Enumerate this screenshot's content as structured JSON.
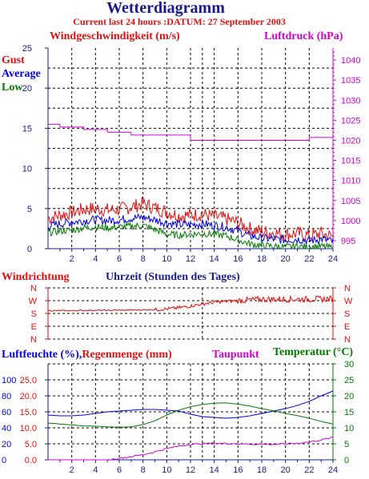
{
  "header": {
    "title": "Wetterdiagramm",
    "subtitle": "Current last 24 hours :DATUM: 27 September 2003"
  },
  "colors": {
    "navy": "#1a1a8c",
    "red": "#e01010",
    "magenta": "#d100d1",
    "green": "#007a00",
    "blue": "#0000e6",
    "grid": "#000000"
  },
  "chart_data": [
    {
      "type": "line",
      "panel": "wind",
      "ylabel": "Windgeschwindigkeit (m/s)",
      "y2label": "Luftdruck (hPa)",
      "ylim": [
        0,
        25
      ],
      "y2lim": [
        993,
        1043
      ],
      "y_ticks": [
        "0",
        "5",
        "10",
        "15",
        "20",
        "25"
      ],
      "y2_ticks": [
        "995",
        "1000",
        "1005",
        "1010",
        "1015",
        "1020",
        "1025",
        "1030",
        "1035",
        "1040"
      ],
      "x_ticks": [
        "2",
        "4",
        "6",
        "8",
        "10",
        "12",
        "14",
        "16",
        "18",
        "20",
        "22",
        "24"
      ],
      "xlim": [
        0,
        24
      ],
      "legend": [
        "Gust",
        "Average",
        "Low"
      ],
      "grid": true,
      "series": [
        {
          "name": "Gust",
          "color": "#e01010",
          "x": [
            0,
            1,
            2,
            3,
            4,
            5,
            6,
            7,
            8,
            9,
            10,
            11,
            12,
            13,
            14,
            15,
            16,
            17,
            18,
            19,
            20,
            21,
            22,
            23,
            24
          ],
          "values": [
            3.8,
            4.2,
            4.5,
            4.9,
            5.0,
            4.8,
            4.9,
            5.2,
            5.6,
            5.1,
            4.6,
            4.1,
            4.2,
            4.3,
            4.0,
            3.7,
            3.2,
            2.5,
            2.1,
            2.0,
            1.8,
            1.9,
            1.6,
            1.9,
            1.5
          ]
        },
        {
          "name": "Average",
          "color": "#0000e6",
          "x": [
            0,
            1,
            2,
            3,
            4,
            5,
            6,
            7,
            8,
            9,
            10,
            11,
            12,
            13,
            14,
            15,
            16,
            17,
            18,
            19,
            20,
            21,
            22,
            23,
            24
          ],
          "values": [
            2.8,
            3.1,
            3.3,
            3.5,
            3.6,
            3.5,
            3.6,
            3.8,
            3.9,
            3.6,
            3.2,
            3.0,
            3.0,
            3.1,
            2.9,
            2.7,
            2.2,
            1.6,
            1.3,
            1.2,
            1.1,
            1.2,
            1.0,
            1.2,
            0.9
          ]
        },
        {
          "name": "Low",
          "color": "#007a00",
          "x": [
            0,
            1,
            2,
            3,
            4,
            5,
            6,
            7,
            8,
            9,
            10,
            11,
            12,
            13,
            14,
            15,
            16,
            17,
            18,
            19,
            20,
            21,
            22,
            23,
            24
          ],
          "values": [
            2.0,
            2.2,
            2.3,
            2.6,
            2.7,
            2.6,
            2.7,
            2.8,
            2.9,
            2.4,
            1.8,
            1.7,
            1.8,
            1.9,
            1.8,
            1.6,
            1.1,
            0.6,
            0.4,
            0.3,
            0.2,
            0.3,
            0.2,
            0.3,
            0.1
          ]
        },
        {
          "name": "Luftdruck",
          "axis": "y2",
          "color": "#d100d1",
          "x": [
            0,
            1,
            2,
            3,
            4,
            5,
            6,
            7,
            8,
            9,
            10,
            11,
            12,
            13,
            14,
            15,
            16,
            17,
            18,
            19,
            20,
            21,
            22,
            23,
            24
          ],
          "values": [
            1024.0,
            1023.3,
            1023.3,
            1022.7,
            1022.7,
            1022.0,
            1022.0,
            1021.3,
            1021.3,
            1021.3,
            1021.3,
            1021.3,
            1020.0,
            1020.0,
            1020.0,
            1020.0,
            1020.0,
            1020.0,
            1020.0,
            1020.0,
            1020.0,
            1020.0,
            1020.7,
            1020.7,
            1020.7
          ]
        }
      ]
    },
    {
      "type": "line",
      "panel": "direction",
      "ylabel": "Windrichtung",
      "xlabel": "Uhrzeit (Stunden des Tages)",
      "y_ticks": [
        "N",
        "E",
        "S",
        "W",
        "N"
      ],
      "ylim": [
        0,
        360
      ],
      "xlim": [
        0,
        24
      ],
      "grid": true,
      "series": [
        {
          "name": "Windrichtung",
          "color": "#e01010",
          "x": [
            0,
            1,
            2,
            3,
            4,
            5,
            6,
            7,
            8,
            9,
            10,
            11,
            12,
            13,
            14,
            15,
            16,
            17,
            18,
            19,
            20,
            21,
            22,
            23,
            24
          ],
          "values": [
            200,
            200,
            200,
            202,
            202,
            202,
            203,
            204,
            205,
            207,
            212,
            220,
            232,
            247,
            258,
            265,
            270,
            275,
            280,
            280,
            280,
            280,
            280,
            282,
            283
          ]
        }
      ]
    },
    {
      "type": "line",
      "panel": "humidity",
      "ylabel": "Luftfeuchte (%),Regenmenge (mm)",
      "y2label": "Temperatur (°C)",
      "extra_label": "Taupunkt",
      "y_ticks_humidity": [
        "0",
        "20",
        "40",
        "60",
        "80",
        "100"
      ],
      "y_ticks_rain": [
        "0.0",
        "5.0",
        "10.0",
        "15.0",
        "20.0",
        "25.0"
      ],
      "y2_ticks": [
        "0",
        "5",
        "10",
        "15",
        "20",
        "25",
        "30"
      ],
      "ylim": [
        0,
        120
      ],
      "y2lim": [
        0,
        30
      ],
      "x_ticks": [
        "2",
        "4",
        "6",
        "8",
        "10",
        "12",
        "14",
        "16",
        "18",
        "20",
        "22",
        "24"
      ],
      "xlim": [
        0,
        24
      ],
      "grid": true,
      "series": [
        {
          "name": "Luftfeuchte",
          "color": "#0000e6",
          "axis": "y",
          "x": [
            0,
            1,
            2,
            3,
            4,
            5,
            6,
            7,
            8,
            9,
            10,
            11,
            12,
            13,
            14,
            15,
            16,
            17,
            18,
            19,
            20,
            21,
            22,
            23,
            24
          ],
          "values": [
            56,
            55,
            55,
            56,
            58,
            60,
            61,
            62,
            63,
            63,
            62,
            61,
            57,
            54,
            53,
            52,
            53,
            55,
            58,
            61,
            64,
            68,
            73,
            80,
            86
          ]
        },
        {
          "name": "Temperatur",
          "color": "#007a00",
          "axis": "y2",
          "x": [
            0,
            1,
            2,
            3,
            4,
            5,
            6,
            7,
            8,
            9,
            10,
            11,
            12,
            13,
            14,
            15,
            16,
            17,
            18,
            19,
            20,
            21,
            22,
            23,
            24
          ],
          "values": [
            11.5,
            11.2,
            10.9,
            10.6,
            10.5,
            10.3,
            10.2,
            10.3,
            11.0,
            12.2,
            14.0,
            15.5,
            16.6,
            17.3,
            17.7,
            17.8,
            17.4,
            16.8,
            16.0,
            15.3,
            14.5,
            13.8,
            13.0,
            12.0,
            11.2
          ]
        },
        {
          "name": "Taupunkt",
          "color": "#d100d1",
          "axis": "y2",
          "x": [
            0,
            1,
            2,
            3,
            4,
            5,
            6,
            7,
            8,
            9,
            10,
            11,
            12,
            13,
            14,
            15,
            16,
            17,
            18,
            19,
            20,
            21,
            22,
            23,
            24
          ],
          "values": [
            0,
            0,
            0,
            0,
            0,
            0,
            0.5,
            1.0,
            1.6,
            2.5,
            3.5,
            4.3,
            4.8,
            5.0,
            5.2,
            5.1,
            5.0,
            4.9,
            4.9,
            4.8,
            5.0,
            5.2,
            5.6,
            6.2,
            7.0
          ]
        }
      ]
    }
  ]
}
